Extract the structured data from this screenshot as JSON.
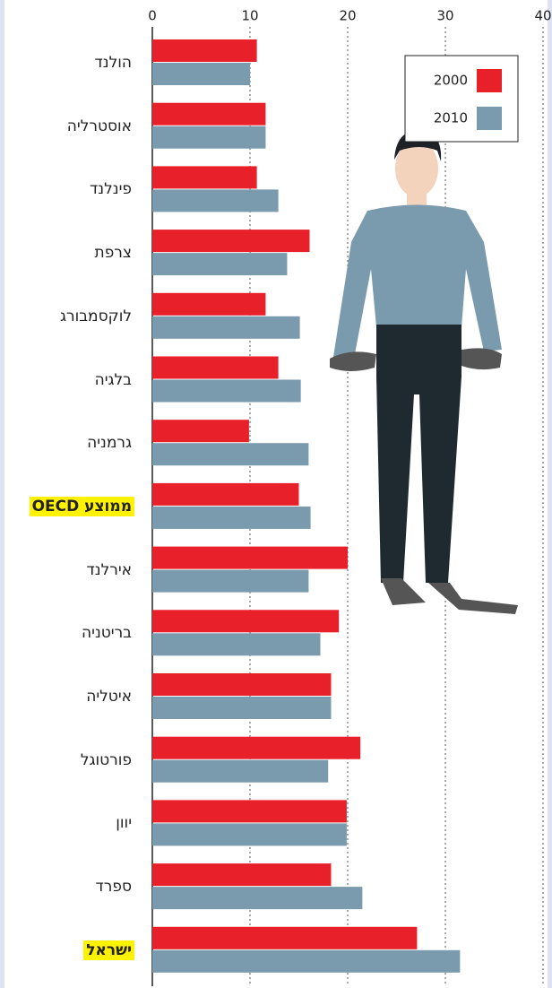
{
  "chart_data": {
    "type": "bar",
    "orientation": "horizontal",
    "categories": [
      "הולנד",
      "אוסטרליה",
      "פינלנד",
      "צרפת",
      "לוקסמבורג",
      "בלגיה",
      "גרמניה",
      "ממוצע OECD",
      "אירלנד",
      "בריטניה",
      "איטליה",
      "פורטוגל",
      "יוון",
      "ספרד",
      "ישראל"
    ],
    "series": [
      {
        "name": "2000",
        "color": "#e8202a",
        "values": [
          10.7,
          11.6,
          10.7,
          16.1,
          11.6,
          12.9,
          9.9,
          15.0,
          20.0,
          19.1,
          18.3,
          21.3,
          19.9,
          18.3,
          27.1
        ]
      },
      {
        "name": "2010",
        "color": "#7a9aad",
        "values": [
          10.0,
          11.6,
          12.9,
          13.8,
          15.1,
          15.2,
          16.0,
          16.2,
          16.0,
          17.2,
          18.3,
          18.0,
          19.9,
          21.5,
          31.5
        ]
      }
    ],
    "xlim": [
      0,
      40
    ],
    "xticks": [
      0,
      10,
      20,
      30,
      40
    ],
    "grid": true,
    "legend": "top-right",
    "highlight": [
      7,
      14
    ],
    "highlight_color": "#fff200"
  }
}
